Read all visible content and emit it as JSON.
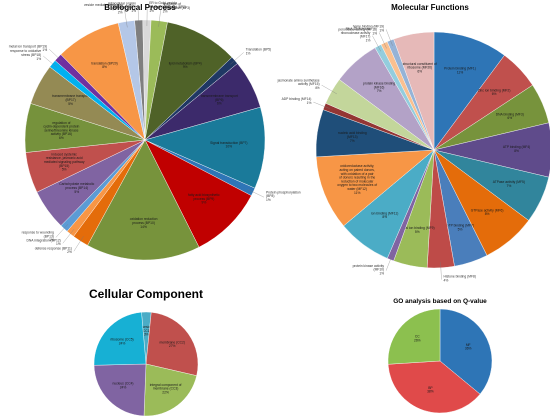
{
  "chart_data": [
    {
      "type": "pie",
      "title": "Biological Process",
      "slices": [
        {
          "label": "intracellular protein transport (BP1)",
          "value": 1,
          "pct": "1%",
          "color": "#7f7f7f"
        },
        {
          "label": "ER to Golgi vesicle mediated transport (BP2)",
          "value": 1,
          "pct": "1%",
          "color": "#d9d9d9"
        },
        {
          "label": "regulation of transcription (BP3)",
          "value": 2,
          "pct": "2%",
          "color": "#9bbb59"
        },
        {
          "label": "lipid metabolism (BP4)",
          "value": 9,
          "pct": "9%",
          "color": "#4f6228"
        },
        {
          "label": "Translation (BP5)",
          "value": 1,
          "pct": "1%",
          "color": "#1f3864"
        },
        {
          "label": "transmembrane transport (BP6)",
          "value": 6,
          "pct": "6%",
          "color": "#3c2a6b"
        },
        {
          "label": "Signal transduction (BP7)",
          "value": 10,
          "pct": "10%",
          "color": "#1a7a9a"
        },
        {
          "label": "Protein phosphorylation (BP8)",
          "value": 1,
          "pct": "1%",
          "color": "#2e75b6"
        },
        {
          "label": "fatty acid biosynthetic process (BP9)",
          "value": 9,
          "pct": "9%",
          "color": "#c00000"
        },
        {
          "label": "oxidation reduction process (BP10)",
          "value": 14,
          "pct": "14%",
          "color": "#77933c"
        },
        {
          "label": "defense response (BP11)",
          "value": 2,
          "pct": "2%",
          "color": "#e46c0a"
        },
        {
          "label": "DNA integration (BP12)",
          "value": 1,
          "pct": "1%",
          "color": "#f79646"
        },
        {
          "label": "response to wounding (BP13)",
          "value": 1,
          "pct": "1%",
          "color": "#5b9bd5"
        },
        {
          "label": "Carbohydrate metabolic process (BP14)",
          "value": 5,
          "pct": "5%",
          "color": "#8064a2"
        },
        {
          "label": "induced systemic resistance, jasmonic acid mediated signaling pathway (BP15)",
          "value": 5,
          "pct": "5%",
          "color": "#c0504d"
        },
        {
          "label": "regulation of cyclin-dependent protein serine/threonine kinase activity (BP16)",
          "value": 6,
          "pct": "6%",
          "color": "#76923c"
        },
        {
          "label": "transmembrane transport (BP17)",
          "value": 5,
          "pct": "5%",
          "color": "#948a54"
        },
        {
          "label": "response to oxidative stress (BP18)",
          "value": 1,
          "pct": "1%",
          "color": "#00b0f0"
        },
        {
          "label": "metal ion transport (BP19)",
          "value": 1,
          "pct": "1%",
          "color": "#7030a0"
        },
        {
          "label": "translation (BP20)",
          "value": 8,
          "pct": "8%",
          "color": "#f79646"
        },
        {
          "label": "vesicle mediated transport (BP21)",
          "value": 2,
          "pct": "2%",
          "color": "#b4c7e7"
        }
      ]
    },
    {
      "type": "pie",
      "title": "Molecular Functions",
      "slices": [
        {
          "label": "Protein binding (MF1)",
          "value": 11,
          "pct": "11%",
          "color": "#2e75b6"
        },
        {
          "label": "Zinc ion binding (MF2)",
          "value": 6,
          "pct": "6%",
          "color": "#c0504d"
        },
        {
          "label": "DNA binding (MF3)",
          "value": 6,
          "pct": "6%",
          "color": "#77933c"
        },
        {
          "label": "ATP binding (MF4)",
          "value": 8,
          "pct": "8%",
          "color": "#5f4b8b"
        },
        {
          "label": "ATPase activity (MF5)",
          "value": 7,
          "pct": "7%",
          "color": "#31859c"
        },
        {
          "label": "GTPase activity (MF6)",
          "value": 8,
          "pct": "8%",
          "color": "#e46c0a"
        },
        {
          "label": "GTP binding (MF7)",
          "value": 5,
          "pct": "5%",
          "color": "#4a7ebb"
        },
        {
          "label": "Histone binding (MF8)",
          "value": 4,
          "pct": "4%",
          "color": "#be4b48"
        },
        {
          "label": "metal ion binding (MF9)",
          "value": 5,
          "pct": "5%",
          "color": "#9bbb59"
        },
        {
          "label": "protein kinase activity (MF10)",
          "value": 1,
          "pct": "1%",
          "color": "#8064a2"
        },
        {
          "label": "ion binding (MF11)",
          "value": 8,
          "pct": "8%",
          "color": "#4bacc6"
        },
        {
          "label": "oxidoreductase activity, acting on paired donors, with oxidation of a pair of donors resulting in the reduction of molecular oxygen to two molecules of water (MF12)",
          "value": 11,
          "pct": "11%",
          "color": "#f79646"
        },
        {
          "label": "nucleic acid binding (MF13)",
          "value": 7,
          "pct": "7%",
          "color": "#1f4e79"
        },
        {
          "label": "ADP binding (MF14)",
          "value": 1,
          "pct": "1%",
          "color": "#943634"
        },
        {
          "label": "jasmonate amino synthetase activity (MF15)",
          "value": 4,
          "pct": "4%",
          "color": "#c3d69b"
        },
        {
          "label": "protein kinase binding (MF16)",
          "value": 7,
          "pct": "7%",
          "color": "#b3a2c7"
        },
        {
          "label": "RNA-DNA hybrid ribonuclease activity (MF17)",
          "value": 1,
          "pct": "1%",
          "color": "#93cddd"
        },
        {
          "label": "peroxidase activity (MF18)",
          "value": 1,
          "pct": "1%",
          "color": "#fac090"
        },
        {
          "label": "heme binding (MF19)",
          "value": 1,
          "pct": "1%",
          "color": "#95b3d7"
        },
        {
          "label": "structural constituent of ribosome (MF20)",
          "value": 6,
          "pct": "6%",
          "color": "#e6b9b8"
        }
      ]
    },
    {
      "type": "pie",
      "title": "Cellular Component",
      "slices": [
        {
          "label": "COPII vesicle coat (CC1)",
          "value": 3,
          "pct": "3%",
          "color": "#4bacc6"
        },
        {
          "label": "membrane (CC2)",
          "value": 27,
          "pct": "27%",
          "color": "#c0504d"
        },
        {
          "label": "integral component of membrane (CC3)",
          "value": 22,
          "pct": "22%",
          "color": "#9bbb59"
        },
        {
          "label": "nucleus (CC4)",
          "value": 24,
          "pct": "24%",
          "color": "#8064a2"
        },
        {
          "label": "ribosome (CC5)",
          "value": 24,
          "pct": "24%",
          "color": "#17b0d4"
        }
      ]
    },
    {
      "type": "pie",
      "title": "GO analysis based on Q-value",
      "slices": [
        {
          "label": "MF",
          "value": 36,
          "pct": "36%",
          "color": "#2e75b6"
        },
        {
          "label": "BP",
          "value": 38,
          "pct": "38%",
          "color": "#e04a4a"
        },
        {
          "label": "CC",
          "value": 26,
          "pct": "26%",
          "color": "#8cc04f"
        }
      ]
    }
  ]
}
